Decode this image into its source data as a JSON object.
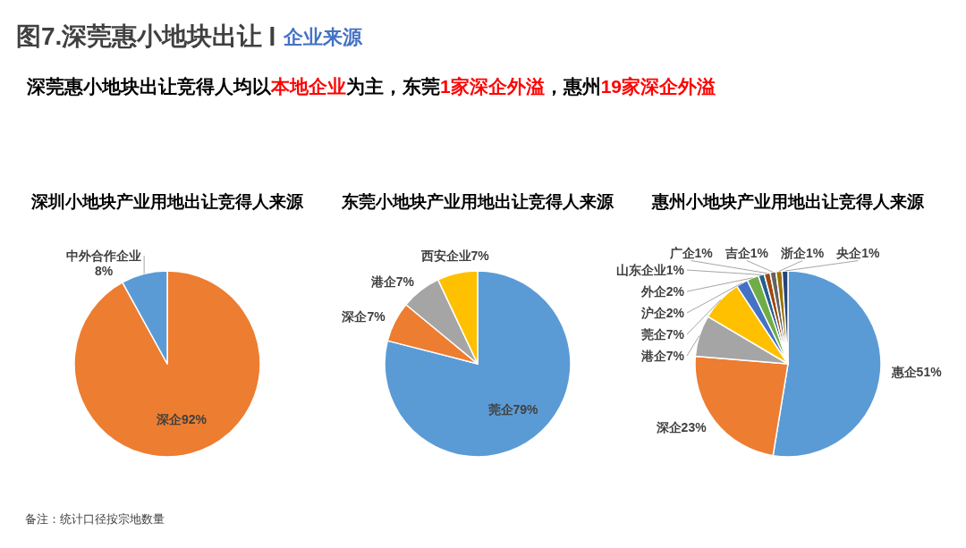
{
  "chart_data": [
    {
      "type": "other",
      "title": "图7.深莞惠小地块出让",
      "subtitle": "企业来源",
      "annotations": [
        "深莞惠小地块出让竞得人均以",
        "本地企业",
        "为主，东莞",
        "1家深企外溢",
        "，惠州",
        "19家深企外溢"
      ]
    },
    {
      "type": "pie",
      "title": "深圳小地块产业用地出让竞得人来源",
      "categories": [
        "深企",
        "中外合作企业"
      ],
      "values": [
        92,
        8
      ],
      "colors": [
        "#ED7D31",
        "#5B9BD5"
      ],
      "value_labels": [
        "92%",
        "8%"
      ],
      "annotations": [
        "备注：统计口径按宗地数量"
      ]
    },
    {
      "type": "pie",
      "title": "东莞小地块产业用地出让竞得人来源",
      "categories": [
        "莞企",
        "深企",
        "港企",
        "西安企业"
      ],
      "values": [
        79,
        7,
        7,
        7
      ],
      "colors": [
        "#5B9BD5",
        "#ED7D31",
        "#A5A5A5",
        "#FFC000"
      ],
      "value_labels": [
        "79%",
        "7%",
        "7%",
        "7%"
      ]
    },
    {
      "type": "pie",
      "title": "惠州小地块产业用地出让竞得人来源",
      "categories": [
        "惠企",
        "深企",
        "港企",
        "莞企",
        "沪企",
        "外企",
        "山东企业",
        "广企",
        "吉企",
        "浙企",
        "央企"
      ],
      "values": [
        51,
        23,
        7,
        7,
        2,
        2,
        1,
        1,
        1,
        1,
        1
      ],
      "colors": [
        "#5B9BD5",
        "#ED7D31",
        "#A5A5A5",
        "#FFC000",
        "#4472C4",
        "#70AD47",
        "#255E91",
        "#9E480E",
        "#636363",
        "#997300",
        "#264478"
      ],
      "value_labels": [
        "51%",
        "23%",
        "7%",
        "7%",
        "2%",
        "2%",
        "1%",
        "1%",
        "1%",
        "1%",
        "1%"
      ]
    }
  ]
}
